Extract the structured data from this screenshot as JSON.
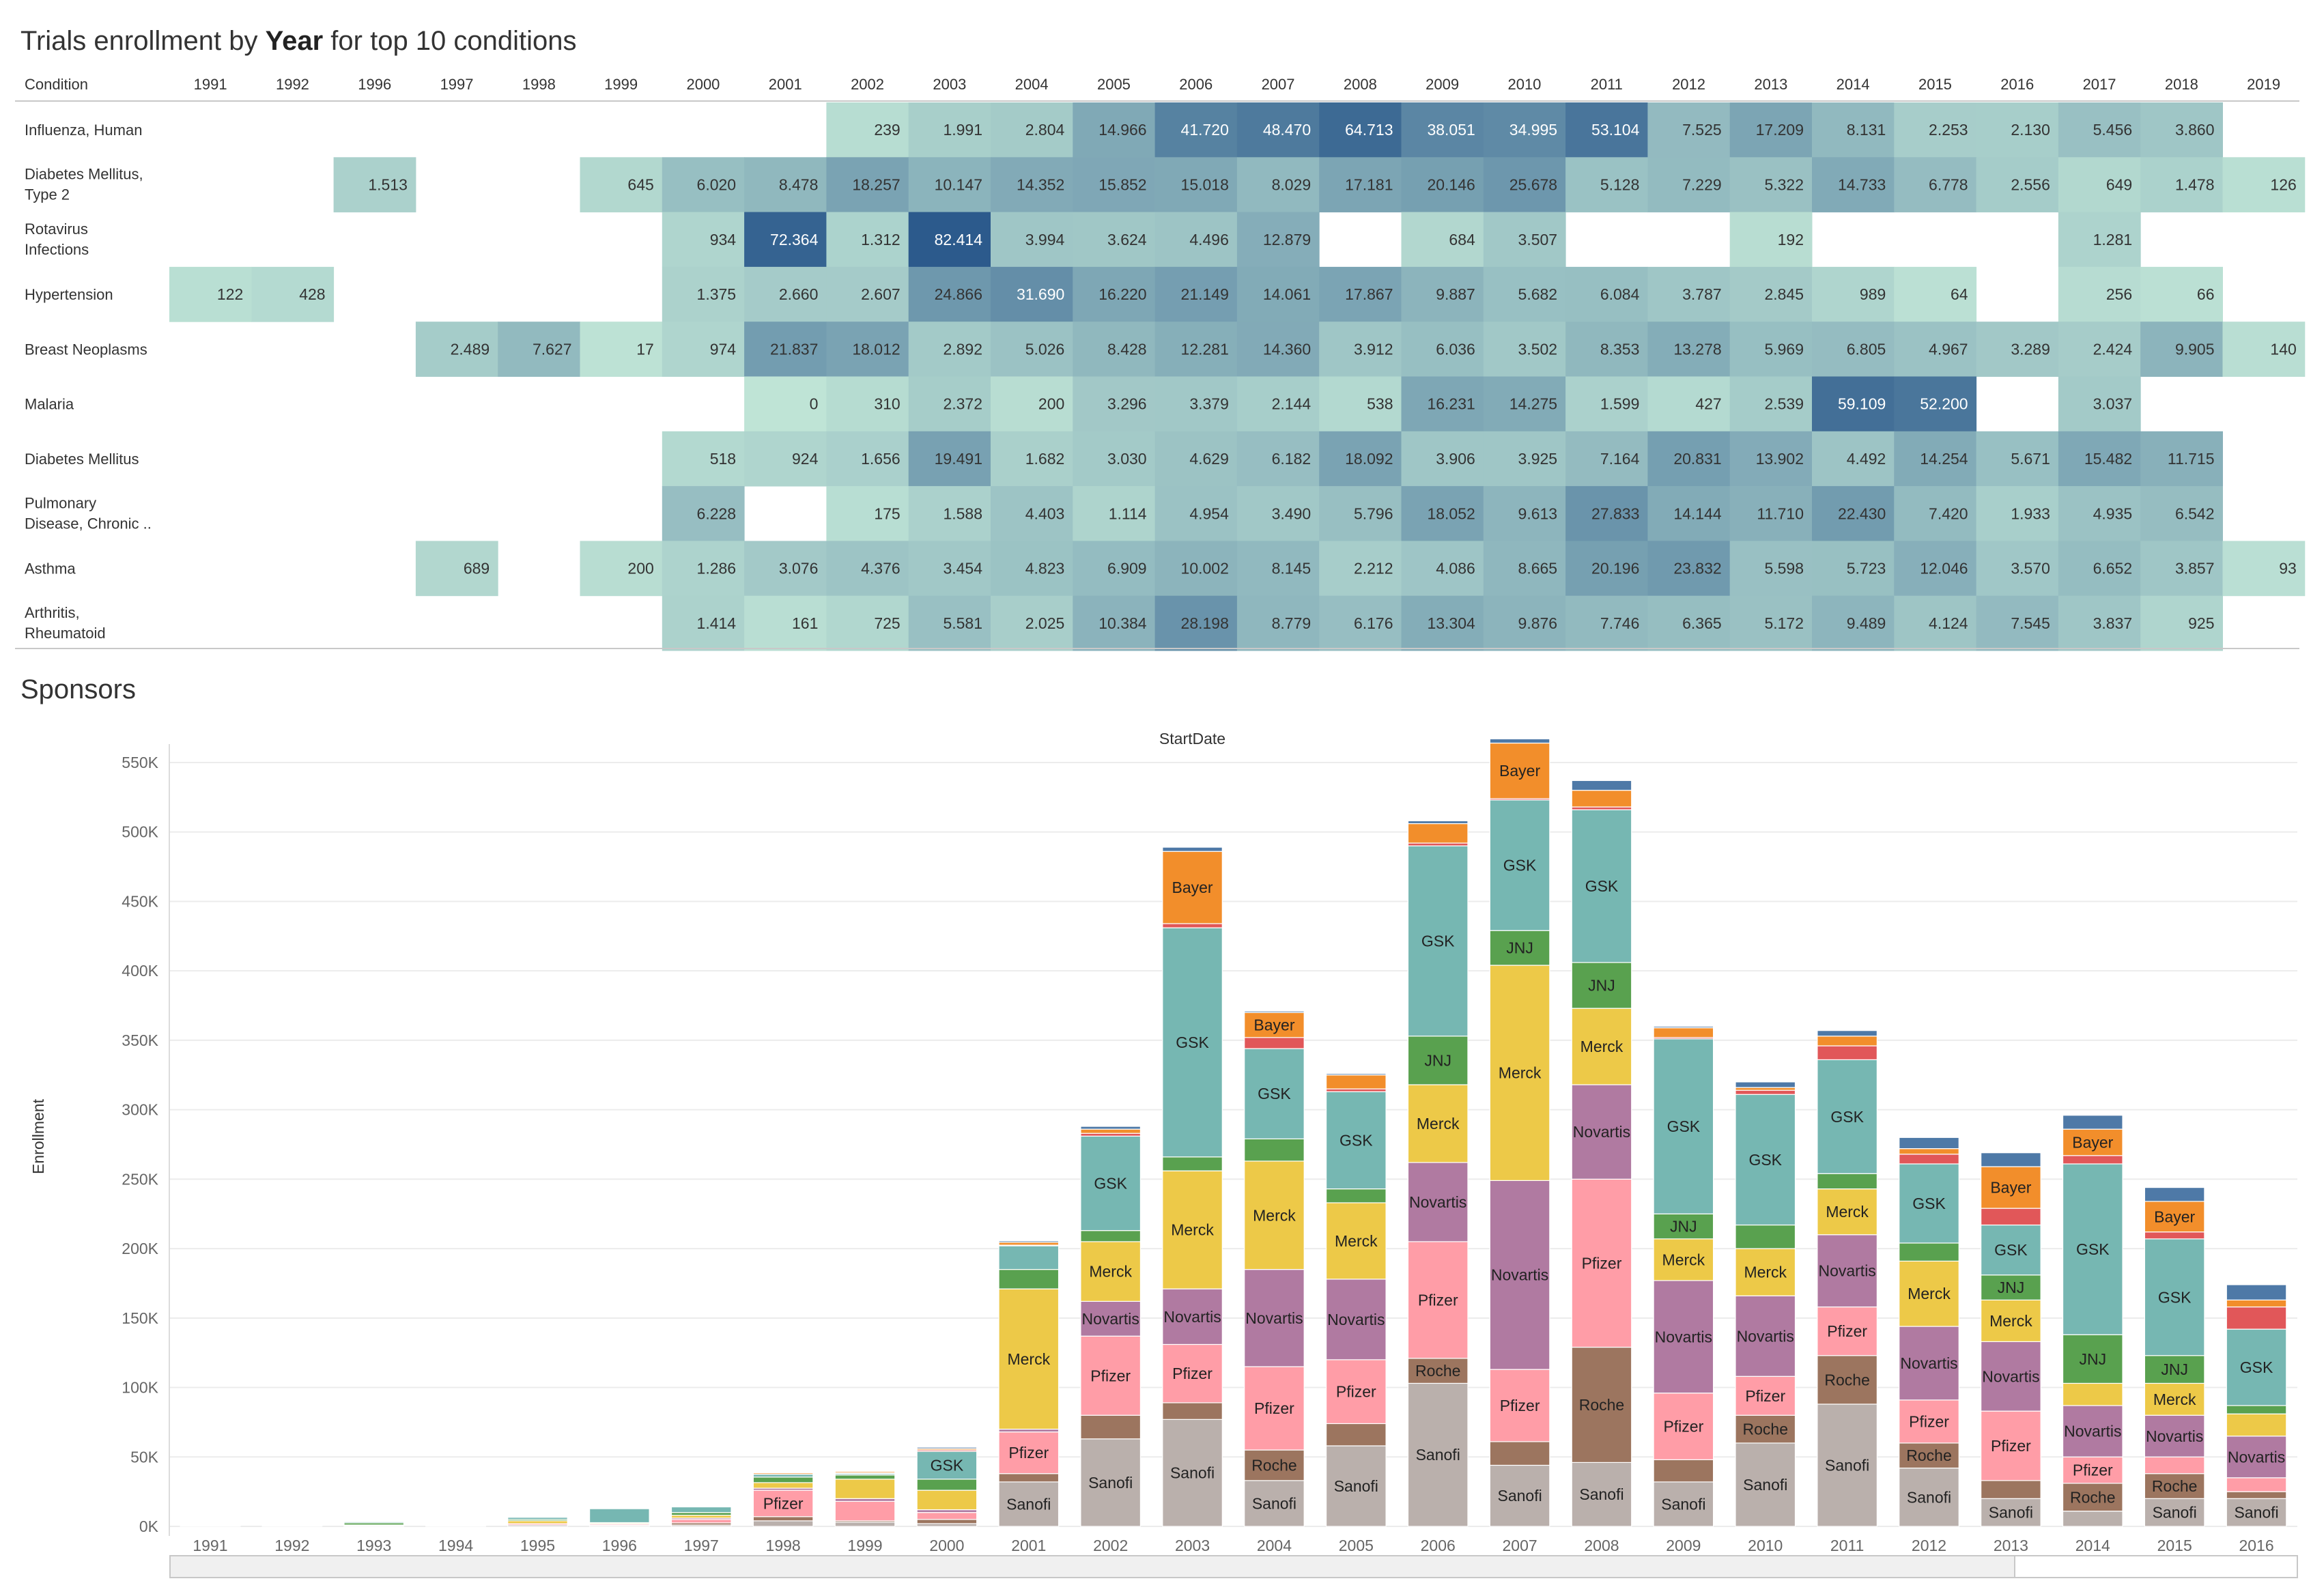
{
  "heatmap_title_pre": "Trials enrollment by ",
  "heatmap_title_bold": "Year",
  "heatmap_title_post": " for top 10 conditions",
  "sponsors_title": "Sponsors",
  "colors": {
    "heat_low": "#bfe4d6",
    "heat_high": "#2c5a8c",
    "Sanofi": "#bab0ac",
    "Roche": "#9c755f",
    "Pfizer": "#ff9da7",
    "Novartis": "#b07aa1",
    "Merck": "#edc948",
    "JNJ": "#59a14f",
    "GSK": "#76b7b2",
    "Other_red": "#e15759",
    "Bayer": "#f28e2b",
    "Other_blue": "#4e79a7"
  },
  "chart_data": [
    {
      "type": "heatmap",
      "row_header": "Condition",
      "columns": [
        "1991",
        "1992",
        "1996",
        "1997",
        "1998",
        "1999",
        "2000",
        "2001",
        "2002",
        "2003",
        "2004",
        "2005",
        "2006",
        "2007",
        "2008",
        "2009",
        "2010",
        "2011",
        "2012",
        "2013",
        "2014",
        "2015",
        "2016",
        "2017",
        "2018",
        "2019"
      ],
      "rows": [
        {
          "condition": [
            "Influenza, Human"
          ],
          "values": [
            null,
            null,
            null,
            null,
            null,
            null,
            null,
            null,
            239,
            1991,
            2804,
            14966,
            41720,
            48470,
            64713,
            38051,
            34995,
            53104,
            7525,
            17209,
            8131,
            2253,
            2130,
            5456,
            3860,
            null
          ],
          "labels": [
            "",
            "",
            "",
            "",
            "",
            "",
            "",
            "",
            "239",
            "1.991",
            "2.804",
            "14.966",
            "41.720",
            "48.470",
            "64.713",
            "38.051",
            "34.995",
            "53.104",
            "7.525",
            "17.209",
            "8.131",
            "2.253",
            "2.130",
            "5.456",
            "3.860",
            ""
          ]
        },
        {
          "condition": [
            "Diabetes Mellitus,",
            "Type 2"
          ],
          "values": [
            null,
            null,
            1513,
            null,
            null,
            645,
            6020,
            8478,
            18257,
            10147,
            14352,
            15852,
            15018,
            8029,
            17181,
            20146,
            25678,
            5128,
            7229,
            5322,
            14733,
            6778,
            2556,
            649,
            1478,
            126
          ],
          "labels": [
            "",
            "",
            "1.513",
            "",
            "",
            "645",
            "6.020",
            "8.478",
            "18.257",
            "10.147",
            "14.352",
            "15.852",
            "15.018",
            "8.029",
            "17.181",
            "20.146",
            "25.678",
            "5.128",
            "7.229",
            "5.322",
            "14.733",
            "6.778",
            "2.556",
            "649",
            "1.478",
            "126"
          ]
        },
        {
          "condition": [
            "Rotavirus",
            "Infections"
          ],
          "values": [
            null,
            null,
            null,
            null,
            null,
            null,
            934,
            72364,
            1312,
            82414,
            3994,
            3624,
            4496,
            12879,
            null,
            684,
            3507,
            null,
            null,
            192,
            null,
            null,
            null,
            1281,
            null,
            null
          ],
          "labels": [
            "",
            "",
            "",
            "",
            "",
            "",
            "934",
            "72.364",
            "1.312",
            "82.414",
            "3.994",
            "3.624",
            "4.496",
            "12.879",
            "",
            "684",
            "3.507",
            "",
            "",
            "192",
            "",
            "",
            "",
            "1.281",
            "",
            ""
          ]
        },
        {
          "condition": [
            "Hypertension"
          ],
          "values": [
            122,
            428,
            null,
            null,
            null,
            null,
            1375,
            2660,
            2607,
            24866,
            31690,
            16220,
            21149,
            14061,
            17867,
            9887,
            5682,
            6084,
            3787,
            2845,
            989,
            64,
            null,
            256,
            66,
            null
          ],
          "labels": [
            "122",
            "428",
            "",
            "",
            "",
            "",
            "1.375",
            "2.660",
            "2.607",
            "24.866",
            "31.690",
            "16.220",
            "21.149",
            "14.061",
            "17.867",
            "9.887",
            "5.682",
            "6.084",
            "3.787",
            "2.845",
            "989",
            "64",
            "",
            "256",
            "66",
            ""
          ]
        },
        {
          "condition": [
            "Breast Neoplasms"
          ],
          "values": [
            null,
            null,
            null,
            2489,
            7627,
            17,
            974,
            21837,
            18012,
            2892,
            5026,
            8428,
            12281,
            14360,
            3912,
            6036,
            3502,
            8353,
            13278,
            5969,
            6805,
            4967,
            3289,
            2424,
            9905,
            140
          ],
          "labels": [
            "",
            "",
            "",
            "2.489",
            "7.627",
            "17",
            "974",
            "21.837",
            "18.012",
            "2.892",
            "5.026",
            "8.428",
            "12.281",
            "14.360",
            "3.912",
            "6.036",
            "3.502",
            "8.353",
            "13.278",
            "5.969",
            "6.805",
            "4.967",
            "3.289",
            "2.424",
            "9.905",
            "140"
          ]
        },
        {
          "condition": [
            "Malaria"
          ],
          "values": [
            null,
            null,
            null,
            null,
            null,
            null,
            null,
            0,
            310,
            2372,
            200,
            3296,
            3379,
            2144,
            538,
            16231,
            14275,
            1599,
            427,
            2539,
            59109,
            52200,
            null,
            3037,
            null,
            null
          ],
          "labels": [
            "",
            "",
            "",
            "",
            "",
            "",
            "",
            "0",
            "310",
            "2.372",
            "200",
            "3.296",
            "3.379",
            "2.144",
            "538",
            "16.231",
            "14.275",
            "1.599",
            "427",
            "2.539",
            "59.109",
            "52.200",
            "",
            "3.037",
            "",
            ""
          ]
        },
        {
          "condition": [
            "Diabetes Mellitus"
          ],
          "values": [
            null,
            null,
            null,
            null,
            null,
            null,
            518,
            924,
            1656,
            19491,
            1682,
            3030,
            4629,
            6182,
            18092,
            3906,
            3925,
            7164,
            20831,
            13902,
            4492,
            14254,
            5671,
            15482,
            11715,
            null
          ],
          "labels": [
            "",
            "",
            "",
            "",
            "",
            "",
            "518",
            "924",
            "1.656",
            "19.491",
            "1.682",
            "3.030",
            "4.629",
            "6.182",
            "18.092",
            "3.906",
            "3.925",
            "7.164",
            "20.831",
            "13.902",
            "4.492",
            "14.254",
            "5.671",
            "15.482",
            "11.715",
            ""
          ]
        },
        {
          "condition": [
            "Pulmonary",
            "Disease, Chronic .."
          ],
          "values": [
            null,
            null,
            null,
            null,
            null,
            null,
            6228,
            null,
            175,
            1588,
            4403,
            1114,
            4954,
            3490,
            5796,
            18052,
            9613,
            27833,
            14144,
            11710,
            22430,
            7420,
            1933,
            4935,
            6542,
            null
          ],
          "labels": [
            "",
            "",
            "",
            "",
            "",
            "",
            "6.228",
            "",
            "175",
            "1.588",
            "4.403",
            "1.114",
            "4.954",
            "3.490",
            "5.796",
            "18.052",
            "9.613",
            "27.833",
            "14.144",
            "11.710",
            "22.430",
            "7.420",
            "1.933",
            "4.935",
            "6.542",
            ""
          ]
        },
        {
          "condition": [
            "Asthma"
          ],
          "values": [
            null,
            null,
            null,
            689,
            null,
            200,
            1286,
            3076,
            4376,
            3454,
            4823,
            6909,
            10002,
            8145,
            2212,
            4086,
            8665,
            20196,
            23832,
            5598,
            5723,
            12046,
            3570,
            6652,
            3857,
            93
          ],
          "labels": [
            "",
            "",
            "",
            "689",
            "",
            "200",
            "1.286",
            "3.076",
            "4.376",
            "3.454",
            "4.823",
            "6.909",
            "10.002",
            "8.145",
            "2.212",
            "4.086",
            "8.665",
            "20.196",
            "23.832",
            "5.598",
            "5.723",
            "12.046",
            "3.570",
            "6.652",
            "3.857",
            "93"
          ]
        },
        {
          "condition": [
            "Arthritis,",
            "Rheumatoid"
          ],
          "values": [
            null,
            null,
            null,
            null,
            null,
            null,
            1414,
            161,
            725,
            5581,
            2025,
            10384,
            28198,
            8779,
            6176,
            13304,
            9876,
            7746,
            6365,
            5172,
            9489,
            4124,
            7545,
            3837,
            925,
            null
          ],
          "labels": [
            "",
            "",
            "",
            "",
            "",
            "",
            "1.414",
            "161",
            "725",
            "5.581",
            "2.025",
            "10.384",
            "28.198",
            "8.779",
            "6.176",
            "13.304",
            "9.876",
            "7.746",
            "6.365",
            "5.172",
            "9.489",
            "4.124",
            "7.545",
            "3.837",
            "925",
            ""
          ]
        }
      ]
    },
    {
      "type": "bar",
      "stacked": true,
      "title": "StartDate",
      "ylabel": "Enrollment",
      "ylim": [
        0,
        550000
      ],
      "yticks": [
        0,
        50000,
        100000,
        150000,
        200000,
        250000,
        300000,
        350000,
        400000,
        450000,
        500000,
        550000
      ],
      "ytick_labels": [
        "0K",
        "50K",
        "100K",
        "150K",
        "200K",
        "250K",
        "300K",
        "350K",
        "400K",
        "450K",
        "500K",
        "550K"
      ],
      "categories": [
        "1991",
        "1992",
        "1993",
        "1994",
        "1995",
        "1996",
        "1997",
        "1998",
        "1999",
        "2000",
        "2001",
        "2002",
        "2003",
        "2004",
        "2005",
        "2006",
        "2007",
        "2008",
        "2009",
        "2010",
        "2011",
        "2012",
        "2013",
        "2014",
        "2015",
        "2016"
      ],
      "series": [
        {
          "key": "Sanofi",
          "name": "Sanofi",
          "values": [
            300,
            300,
            300,
            200,
            1000,
            700,
            1000,
            4000,
            3000,
            2000,
            32000,
            63000,
            77000,
            33000,
            58000,
            103000,
            44000,
            46000,
            32000,
            60000,
            88000,
            42000,
            20000,
            11000,
            20000,
            20000
          ]
        },
        {
          "key": "Roche",
          "name": "Roche",
          "values": [
            0,
            0,
            0,
            0,
            0,
            0,
            1500,
            3000,
            1000,
            3000,
            6000,
            17000,
            12000,
            22000,
            16000,
            18000,
            17000,
            83000,
            16000,
            20000,
            35000,
            18000,
            13000,
            20000,
            18000,
            5000
          ]
        },
        {
          "key": "Pfizer",
          "name": "Pfizer",
          "values": [
            300,
            300,
            300,
            200,
            1000,
            800,
            2500,
            19000,
            14000,
            5000,
            30000,
            57000,
            42000,
            60000,
            46000,
            84000,
            52000,
            121000,
            48000,
            28000,
            35000,
            31000,
            50000,
            19000,
            12000,
            10000
          ]
        },
        {
          "key": "Novartis",
          "name": "Novartis",
          "values": [
            0,
            0,
            0,
            0,
            0,
            500,
            1000,
            1500,
            2000,
            2000,
            2000,
            25000,
            40000,
            70000,
            58000,
            57000,
            136000,
            68000,
            81000,
            58000,
            52000,
            53000,
            50000,
            37000,
            30000,
            30000
          ]
        },
        {
          "key": "Merck",
          "name": "Merck",
          "values": [
            400,
            200,
            400,
            300,
            2000,
            700,
            2000,
            4000,
            14000,
            14000,
            101000,
            43000,
            85000,
            78000,
            55000,
            56000,
            155000,
            55000,
            30000,
            34000,
            33000,
            47000,
            30000,
            16000,
            23000,
            16000
          ]
        },
        {
          "key": "JNJ",
          "name": "JNJ",
          "values": [
            0,
            0,
            1500,
            0,
            1000,
            0,
            2000,
            4000,
            3000,
            8000,
            14000,
            8000,
            10000,
            16000,
            10000,
            35000,
            25000,
            33000,
            18000,
            17000,
            11000,
            13000,
            18000,
            35000,
            20000,
            6000
          ]
        },
        {
          "key": "GSK",
          "name": "GSK",
          "values": [
            500,
            300,
            800,
            500,
            1500,
            10000,
            4000,
            2000,
            1000,
            20000,
            17000,
            68000,
            165000,
            65000,
            70000,
            137000,
            94000,
            110000,
            126000,
            94000,
            82000,
            57000,
            36000,
            123000,
            84000,
            55000
          ]
        },
        {
          "key": "Other_red",
          "name": "",
          "values": [
            0,
            0,
            0,
            0,
            0,
            0,
            0,
            0,
            500,
            1000,
            500,
            2000,
            3000,
            8000,
            2000,
            2000,
            1000,
            2000,
            1000,
            3000,
            10000,
            7000,
            12000,
            6000,
            5000,
            16000
          ]
        },
        {
          "key": "Bayer",
          "name": "Bayer",
          "values": [
            0,
            0,
            0,
            0,
            0,
            0,
            0,
            1000,
            1000,
            1000,
            2000,
            3000,
            52000,
            18000,
            10000,
            14000,
            40000,
            12000,
            7000,
            2000,
            7000,
            4000,
            30000,
            19000,
            22000,
            5000
          ]
        },
        {
          "key": "Other_blue",
          "name": "",
          "values": [
            0,
            0,
            0,
            0,
            0,
            0,
            0,
            500,
            500,
            1000,
            1000,
            2000,
            3000,
            1000,
            1000,
            2000,
            3000,
            7000,
            1000,
            4000,
            4000,
            8000,
            10000,
            10000,
            10000,
            11000
          ]
        }
      ]
    }
  ]
}
